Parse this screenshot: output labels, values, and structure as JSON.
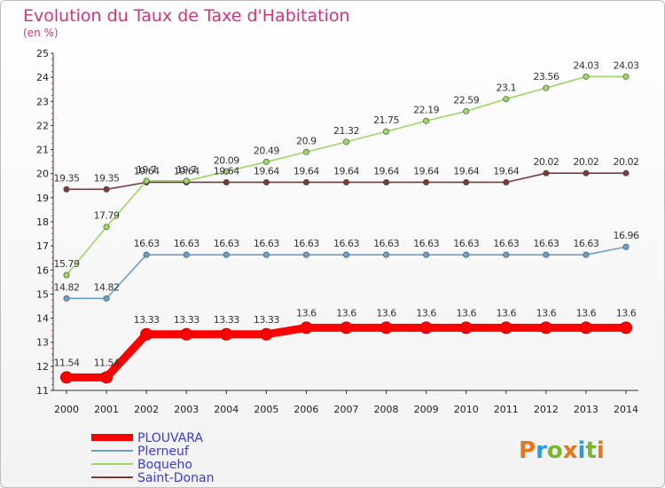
{
  "chart_data": {
    "type": "line",
    "title": "Evolution du Taux de Taxe d'Habitation",
    "subtitle": "(en %)",
    "x": [
      "2000",
      "2001",
      "2002",
      "2003",
      "2004",
      "2005",
      "2006",
      "2007",
      "2008",
      "2009",
      "2010",
      "2011",
      "2012",
      "2013",
      "2014"
    ],
    "ylim": [
      11,
      25
    ],
    "yticks": [
      "11",
      "12",
      "13",
      "14",
      "15",
      "16",
      "17",
      "18",
      "19",
      "20",
      "21",
      "22",
      "23",
      "24",
      "25"
    ],
    "grid": false,
    "legend_position": "bottom-left",
    "series": [
      {
        "name": "PLOUVARA",
        "color": "#ff0000",
        "values": [
          11.54,
          11.54,
          13.33,
          13.33,
          13.33,
          13.33,
          13.6,
          13.6,
          13.6,
          13.6,
          13.6,
          13.6,
          13.6,
          13.6,
          13.6
        ],
        "labels": [
          "11.54",
          "11.54",
          "13.33",
          "13.33",
          "13.33",
          "13.33",
          "13.6",
          "13.6",
          "13.6",
          "13.6",
          "13.6",
          "13.6",
          "13.6",
          "13.6",
          "13.6"
        ]
      },
      {
        "name": "Plerneuf",
        "color": "#6a9fd0",
        "values": [
          14.82,
          14.82,
          16.63,
          16.63,
          16.63,
          16.63,
          16.63,
          16.63,
          16.63,
          16.63,
          16.63,
          16.63,
          16.63,
          16.63,
          16.96
        ],
        "labels": [
          "14.82",
          "14.82",
          "16.63",
          "16.63",
          "16.63",
          "16.63",
          "16.63",
          "16.63",
          "16.63",
          "16.63",
          "16.63",
          "16.63",
          "16.63",
          "16.63",
          "16.96"
        ]
      },
      {
        "name": "Boqueho",
        "color": "#9ad765",
        "values": [
          15.79,
          17.79,
          19.7,
          19.7,
          20.09,
          20.49,
          20.9,
          21.32,
          21.75,
          22.19,
          22.59,
          23.1,
          23.56,
          24.03,
          24.03
        ],
        "labels": [
          "15.79",
          "17.79",
          "19.7",
          "19.7",
          "20.09",
          "20.49",
          "20.9",
          "21.32",
          "21.75",
          "22.19",
          "22.59",
          "23.1",
          "23.56",
          "24.03",
          "24.03"
        ]
      },
      {
        "name": "Saint-Donan",
        "color": "#7a3a3a",
        "values": [
          19.35,
          19.35,
          19.64,
          19.64,
          19.64,
          19.64,
          19.64,
          19.64,
          19.64,
          19.64,
          19.64,
          19.64,
          20.02,
          20.02,
          20.02
        ],
        "labels": [
          "19.35",
          "19.35",
          "19.64",
          "19.64",
          "19.64",
          "19.64",
          "19.64",
          "19.64",
          "19.64",
          "19.64",
          "19.64",
          "19.64",
          "20.02",
          "20.02",
          "20.02"
        ]
      }
    ]
  },
  "logo": {
    "letters": [
      "P",
      "r",
      "o",
      "x",
      "i",
      "t",
      "i"
    ],
    "colors": [
      "#e8751a",
      "#2f9ad8",
      "#78b530",
      "#e8751a",
      "#2f9ad8",
      "#78b530",
      "#e8751a"
    ]
  }
}
